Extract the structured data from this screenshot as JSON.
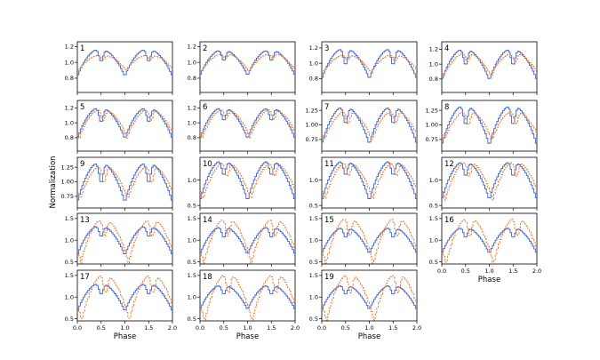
{
  "chart_data": {
    "type": "line",
    "ylabel": "Normalization",
    "xlabel": "Phase",
    "x_range": [
      0.0,
      2.0
    ],
    "x_ticks": [
      "0.0",
      "0.5",
      "1.0",
      "1.5",
      "2.0"
    ],
    "line_colors": [
      "#3a5fcd",
      "#e8762c"
    ],
    "line_styles": [
      "solid steps",
      "dashed steps"
    ],
    "legend": "none",
    "grid": false,
    "panels": [
      {
        "id": "1",
        "ylim": [
          0.62,
          1.26
        ],
        "yticks": [
          0.8,
          1.0,
          1.2
        ],
        "ytick_labels": [
          "0.8",
          "1.0",
          "1.2"
        ],
        "amp": [
          0.18,
          0.1
        ],
        "depth": [
          0.16,
          0.06
        ]
      },
      {
        "id": "2",
        "ylim": [
          0.62,
          1.26
        ],
        "yticks": [
          0.8,
          1.0,
          1.2
        ],
        "ytick_labels": [
          "0.8",
          "1.0",
          "1.2"
        ],
        "amp": [
          0.17,
          0.12
        ],
        "depth": [
          0.14,
          0.06
        ]
      },
      {
        "id": "3",
        "ylim": [
          0.62,
          1.28
        ],
        "yticks": [
          0.8,
          1.0,
          1.2
        ],
        "ytick_labels": [
          "0.8",
          "1.0",
          "1.2"
        ],
        "amp": [
          0.21,
          0.12
        ],
        "depth": [
          0.22,
          0.08
        ]
      },
      {
        "id": "4",
        "ylim": [
          0.62,
          1.3
        ],
        "yticks": [
          0.8,
          1.0,
          1.2
        ],
        "ytick_labels": [
          "0.8",
          "1.0",
          "1.2"
        ],
        "amp": [
          0.22,
          0.16
        ],
        "depth": [
          0.22,
          0.12
        ]
      },
      {
        "id": "5",
        "ylim": [
          0.62,
          1.3
        ],
        "yticks": [
          0.8,
          1.0,
          1.2
        ],
        "ytick_labels": [
          "0.8",
          "1.0",
          "1.2"
        ],
        "amp": [
          0.22,
          0.2
        ],
        "depth": [
          0.2,
          0.16
        ]
      },
      {
        "id": "6",
        "ylim": [
          0.62,
          1.3
        ],
        "yticks": [
          0.8,
          1.0,
          1.2
        ],
        "ytick_labels": [
          "0.8",
          "1.0",
          "1.2"
        ],
        "amp": [
          0.22,
          0.2
        ],
        "depth": [
          0.18,
          0.14
        ]
      },
      {
        "id": "7",
        "ylim": [
          0.55,
          1.42
        ],
        "yticks": [
          0.75,
          1.0,
          1.25
        ],
        "ytick_labels": [
          "0.75",
          "1.00",
          "1.25"
        ],
        "amp": [
          0.34,
          0.26
        ],
        "depth": [
          0.3,
          0.22
        ]
      },
      {
        "id": "8",
        "ylim": [
          0.55,
          1.42
        ],
        "yticks": [
          0.75,
          1.0,
          1.25
        ],
        "ytick_labels": [
          "0.75",
          "1.00",
          "1.25"
        ],
        "amp": [
          0.36,
          0.26
        ],
        "depth": [
          0.34,
          0.24
        ]
      },
      {
        "id": "9",
        "ylim": [
          0.55,
          1.42
        ],
        "yticks": [
          0.75,
          1.0,
          1.25
        ],
        "ytick_labels": [
          "0.75",
          "1.00",
          "1.25"
        ],
        "amp": [
          0.36,
          0.3
        ],
        "depth": [
          0.36,
          0.3
        ]
      },
      {
        "id": "10",
        "ylim": [
          0.45,
          1.45
        ],
        "yticks": [
          0.5,
          1.0
        ],
        "ytick_labels": [
          "0.5",
          "1.0"
        ],
        "amp": [
          0.42,
          0.38
        ],
        "depth": [
          0.3,
          0.28
        ]
      },
      {
        "id": "11",
        "ylim": [
          0.45,
          1.45
        ],
        "yticks": [
          0.5,
          1.0
        ],
        "ytick_labels": [
          "0.5",
          "1.0"
        ],
        "amp": [
          0.42,
          0.38
        ],
        "depth": [
          0.3,
          0.28
        ]
      },
      {
        "id": "12",
        "ylim": [
          0.45,
          1.45
        ],
        "yticks": [
          0.5,
          1.0
        ],
        "ytick_labels": [
          "0.5",
          "1.0"
        ],
        "amp": [
          0.4,
          0.4
        ],
        "depth": [
          0.3,
          0.3
        ]
      },
      {
        "id": "13",
        "ylim": [
          0.45,
          1.62
        ],
        "yticks": [
          0.5,
          1.0,
          1.5
        ],
        "ytick_labels": [
          "0.5",
          "1.0",
          "1.5"
        ],
        "amp": [
          0.36,
          0.52
        ],
        "depth": [
          0.26,
          0.4
        ]
      },
      {
        "id": "14",
        "ylim": [
          0.45,
          1.62
        ],
        "yticks": [
          0.5,
          1.0,
          1.5
        ],
        "ytick_labels": [
          "0.5",
          "1.0",
          "1.5"
        ],
        "amp": [
          0.34,
          0.54
        ],
        "depth": [
          0.26,
          0.42
        ]
      },
      {
        "id": "15",
        "ylim": [
          0.45,
          1.62
        ],
        "yticks": [
          0.5,
          1.0,
          1.5
        ],
        "ytick_labels": [
          "0.5",
          "1.0",
          "1.5"
        ],
        "amp": [
          0.32,
          0.56
        ],
        "depth": [
          0.24,
          0.44
        ]
      },
      {
        "id": "16",
        "ylim": [
          0.45,
          1.62
        ],
        "yticks": [
          0.5,
          1.0,
          1.5
        ],
        "ytick_labels": [
          "0.5",
          "1.0",
          "1.5"
        ],
        "amp": [
          0.32,
          0.56
        ],
        "depth": [
          0.24,
          0.44
        ]
      },
      {
        "id": "17",
        "ylim": [
          0.45,
          1.62
        ],
        "yticks": [
          0.5,
          1.0,
          1.5
        ],
        "ytick_labels": [
          "0.5",
          "1.0",
          "1.5"
        ],
        "amp": [
          0.34,
          0.56
        ],
        "depth": [
          0.26,
          0.44
        ]
      },
      {
        "id": "18",
        "ylim": [
          0.45,
          1.62
        ],
        "yticks": [
          0.5,
          1.0,
          1.5
        ],
        "ytick_labels": [
          "0.5",
          "1.0",
          "1.5"
        ],
        "amp": [
          0.3,
          0.58
        ],
        "depth": [
          0.22,
          0.46
        ]
      },
      {
        "id": "19",
        "ylim": [
          0.45,
          1.62
        ],
        "yticks": [
          0.5,
          1.0,
          1.5
        ],
        "ytick_labels": [
          "0.5",
          "1.0",
          "1.5"
        ],
        "amp": [
          0.3,
          0.58
        ],
        "depth": [
          0.22,
          0.46
        ]
      }
    ]
  }
}
